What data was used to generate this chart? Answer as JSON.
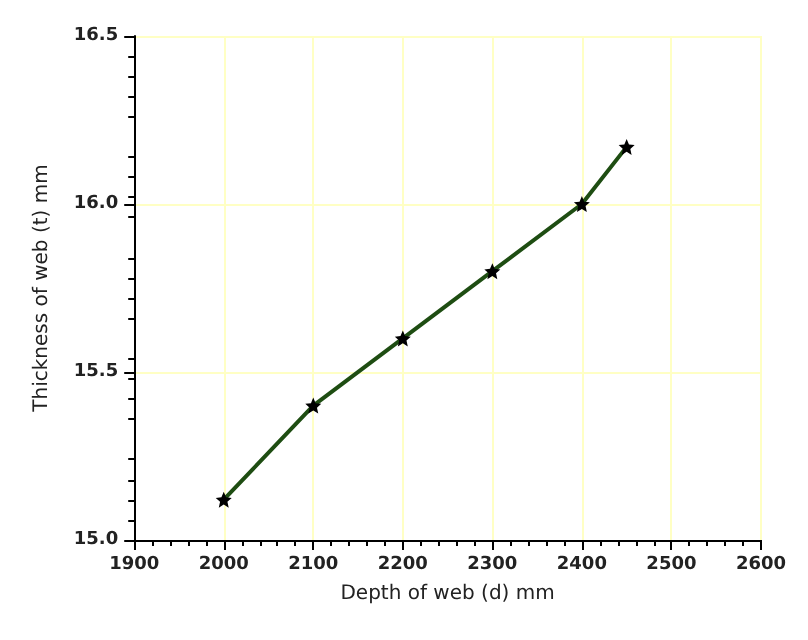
{
  "chart_data": {
    "type": "line",
    "xlabel": "Depth of web (d) mm",
    "ylabel": "Thickness of web (t) mm",
    "x": [
      2000,
      2100,
      2200,
      2300,
      2400,
      2450
    ],
    "series": [
      {
        "color": "#1e4d12",
        "values": [
          15.12,
          15.4,
          15.6,
          15.8,
          16.0,
          16.17
        ]
      }
    ],
    "xlim": [
      1900,
      2600
    ],
    "xticks": [
      1900,
      2000,
      2100,
      2200,
      2300,
      2400,
      2500,
      2600
    ],
    "ylim": [
      15.0,
      16.5
    ],
    "yticks": [
      {
        "value": 15.0,
        "label": "15.0"
      },
      {
        "value": 15.5,
        "label": "15.5"
      },
      {
        "value": 16.0,
        "label": "16.0"
      },
      {
        "value": 16.5,
        "label": "16.5"
      }
    ],
    "grid": true,
    "marker": "star",
    "line_style": "solid"
  }
}
